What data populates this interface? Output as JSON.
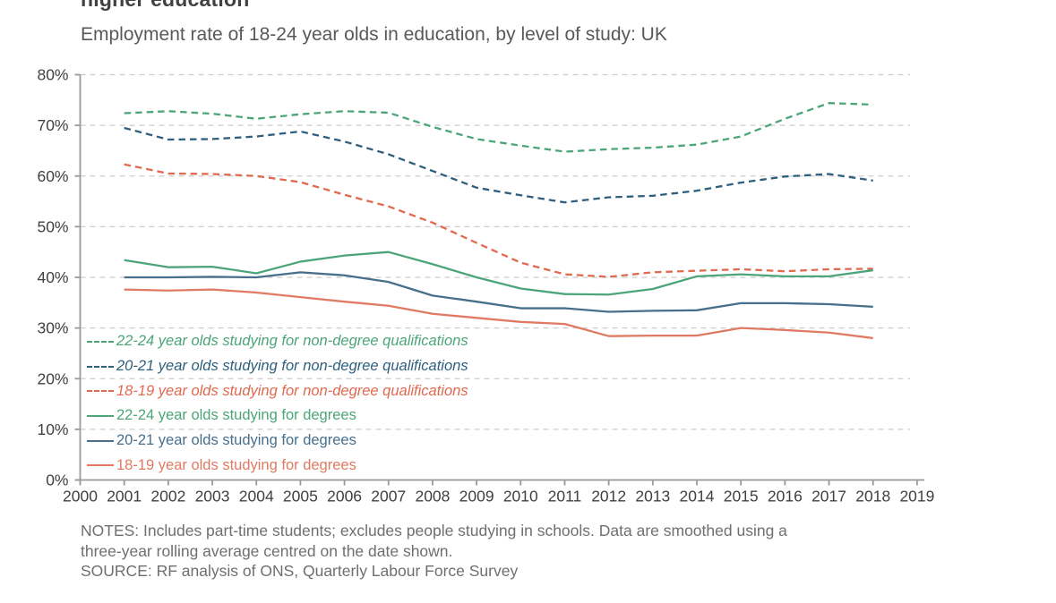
{
  "header": {},
  "chart_data": {
    "type": "line",
    "title": "higher education",
    "subtitle": "Employment rate of 18-24 year olds in education, by level of study: UK",
    "x": [
      2001,
      2002,
      2003,
      2004,
      2005,
      2006,
      2007,
      2008,
      2009,
      2010,
      2011,
      2012,
      2013,
      2014,
      2015,
      2016,
      2017,
      2018
    ],
    "x_axis_ticks": [
      2000,
      2001,
      2002,
      2003,
      2004,
      2005,
      2006,
      2007,
      2008,
      2009,
      2010,
      2011,
      2012,
      2013,
      2014,
      2015,
      2016,
      2017,
      2018,
      2019
    ],
    "ylim": [
      0,
      80
    ],
    "y_ticks": [
      0,
      10,
      20,
      30,
      40,
      50,
      60,
      70,
      80
    ],
    "y_tick_suffix": "%",
    "grid": "horizontal dashed",
    "legend_position": "inside bottom-left",
    "series": [
      {
        "id": "22-24-non-degree",
        "name": "22-24 year olds studying for non-degree qualifications",
        "line": "dashed",
        "italic_legend": true,
        "color": "#4ca579",
        "values": [
          72.4,
          72.8,
          72.3,
          71.3,
          72.2,
          72.8,
          72.5,
          69.7,
          67.3,
          66.0,
          64.8,
          65.3,
          65.6,
          66.2,
          67.8,
          71.3,
          74.4,
          74.1
        ]
      },
      {
        "id": "20-21-non-degree",
        "name": "20-21 year olds studying for non-degree qualifications",
        "line": "dashed",
        "italic_legend": true,
        "color": "#2e5f7e",
        "values": [
          69.5,
          67.2,
          67.3,
          67.8,
          68.8,
          66.8,
          64.3,
          61.0,
          57.7,
          56.2,
          54.8,
          55.8,
          56.1,
          57.1,
          58.7,
          59.9,
          60.4,
          59.1
        ]
      },
      {
        "id": "18-19-non-degree",
        "name": "18-19 year olds studying for non-degree qualifications",
        "line": "dashed",
        "italic_legend": true,
        "color": "#e0694f",
        "values": [
          62.3,
          60.5,
          60.4,
          60.0,
          58.8,
          56.3,
          54.0,
          50.8,
          46.8,
          42.9,
          40.6,
          40.1,
          41.0,
          41.3,
          41.6,
          41.2,
          41.6,
          41.7
        ]
      },
      {
        "id": "22-24-degrees",
        "name": "22-24 year olds studying for degrees",
        "line": "solid",
        "italic_legend": false,
        "color": "#4ca579",
        "values": [
          43.4,
          42.0,
          42.1,
          40.8,
          43.1,
          44.3,
          45.0,
          42.6,
          40.0,
          37.8,
          36.7,
          36.6,
          37.7,
          40.2,
          40.6,
          40.2,
          40.2,
          41.4
        ]
      },
      {
        "id": "20-21-degrees",
        "name": "20-21 year olds studying for degrees",
        "line": "solid",
        "italic_legend": false,
        "color": "#476f8b",
        "values": [
          40.0,
          40.0,
          40.1,
          40.0,
          41.0,
          40.4,
          39.1,
          36.4,
          35.2,
          33.9,
          33.9,
          33.2,
          33.4,
          33.5,
          34.9,
          34.9,
          34.7,
          34.2
        ]
      },
      {
        "id": "18-19-degrees",
        "name": "18-19 year olds studying for degrees",
        "line": "solid",
        "italic_legend": false,
        "color": "#e07a62",
        "values": [
          37.6,
          37.4,
          37.6,
          37.0,
          36.1,
          35.2,
          34.4,
          32.8,
          32.0,
          31.2,
          30.8,
          28.4,
          28.5,
          28.5,
          30.0,
          29.6,
          29.1,
          28.0
        ]
      }
    ],
    "colors": {
      "grid": "#cccccc",
      "axis": "#9a9a9a",
      "tick_label": "#414042"
    }
  },
  "footer": {
    "lines": [
      "NOTES: Includes part-time students; excludes people studying in schools. Data are smoothed using a",
      "three-year rolling average centred on the date shown.",
      "SOURCE: RF analysis of ONS, Quarterly Labour Force Survey"
    ]
  }
}
